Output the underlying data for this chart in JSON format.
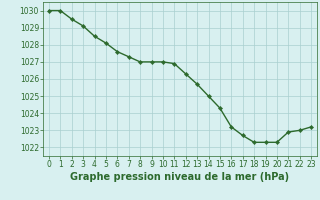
{
  "x": [
    0,
    1,
    2,
    3,
    4,
    5,
    6,
    7,
    8,
    9,
    10,
    11,
    12,
    13,
    14,
    15,
    16,
    17,
    18,
    19,
    20,
    21,
    22,
    23
  ],
  "y": [
    1030.0,
    1030.0,
    1029.5,
    1029.1,
    1028.5,
    1028.1,
    1027.6,
    1027.3,
    1027.0,
    1027.0,
    1027.0,
    1026.9,
    1026.3,
    1025.7,
    1025.0,
    1024.3,
    1023.2,
    1022.7,
    1022.3,
    1022.3,
    1022.3,
    1022.9,
    1023.0,
    1023.2
  ],
  "line_color": "#2d6a2d",
  "marker": "D",
  "marker_size": 2.2,
  "line_width": 1.0,
  "background_color": "#d8f0f0",
  "grid_color": "#aacfcf",
  "xlabel": "Graphe pression niveau de la mer (hPa)",
  "xlabel_fontsize": 7,
  "xlabel_color": "#2d6a2d",
  "tick_color": "#2d6a2d",
  "tick_fontsize": 5.5,
  "ylim": [
    1021.5,
    1030.5
  ],
  "yticks": [
    1022,
    1023,
    1024,
    1025,
    1026,
    1027,
    1028,
    1029,
    1030
  ],
  "xlim": [
    -0.5,
    23.5
  ],
  "xticks": [
    0,
    1,
    2,
    3,
    4,
    5,
    6,
    7,
    8,
    9,
    10,
    11,
    12,
    13,
    14,
    15,
    16,
    17,
    18,
    19,
    20,
    21,
    22,
    23
  ]
}
